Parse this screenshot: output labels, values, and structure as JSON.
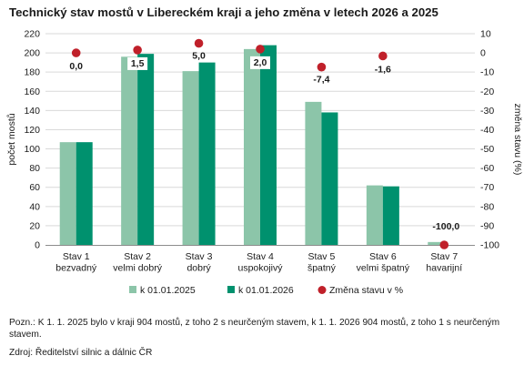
{
  "title": "Technický stav mostů v Libereckém kraji a jeho změna v letech 2026 a 2025",
  "chart_data": {
    "type": "bar",
    "categories": [
      [
        "Stav 1",
        "bezvadný"
      ],
      [
        "Stav 2",
        "velmi dobrý"
      ],
      [
        "Stav 3",
        "dobrý"
      ],
      [
        "Stav 4",
        "uspokojivý"
      ],
      [
        "Stav 5",
        "špatný"
      ],
      [
        "Stav 6",
        "velmi špatný"
      ],
      [
        "Stav 7",
        "havarijní"
      ]
    ],
    "series": [
      {
        "name": "k 01.01.2025",
        "values": [
          107,
          196,
          181,
          204,
          149,
          62,
          3
        ],
        "color": "#8cc5a9",
        "axis": "left"
      },
      {
        "name": "k 01.01.2026",
        "values": [
          107,
          199,
          190,
          208,
          138,
          61,
          0
        ],
        "color": "#00916e",
        "axis": "left"
      },
      {
        "name": "Změna stavu v %",
        "type": "scatter",
        "values": [
          0.0,
          1.5,
          5.0,
          2.0,
          -7.4,
          -1.6,
          -100.0
        ],
        "labels": [
          "0,0",
          "1,5",
          "5,0",
          "2,0",
          "-7,4",
          "-1,6",
          "-100,0"
        ],
        "color": "#c0202a",
        "axis": "right"
      }
    ],
    "ylabel": "počet mostů",
    "ylabel_right": "změna stavu (%)",
    "ylim": [
      0,
      220
    ],
    "yticks": [
      0,
      20,
      40,
      60,
      80,
      100,
      120,
      140,
      160,
      180,
      200,
      220
    ],
    "ylim_right": [
      -100,
      10
    ],
    "yticks_right": [
      -100,
      -90,
      -80,
      -70,
      -60,
      -50,
      -40,
      -30,
      -20,
      -10,
      0,
      10
    ],
    "grid": true,
    "legend_position": "bottom"
  },
  "notes": {
    "pozn": "Pozn.: K 1. 1. 2025 bylo v kraji 904 mostů, z toho 2 s neurčeným stavem, k 1. 1. 2026 904 mostů, z toho 1 s neurčeným stavem.",
    "zdroj": "Zdroj: Ředitelství silnic a dálnic ČR"
  }
}
